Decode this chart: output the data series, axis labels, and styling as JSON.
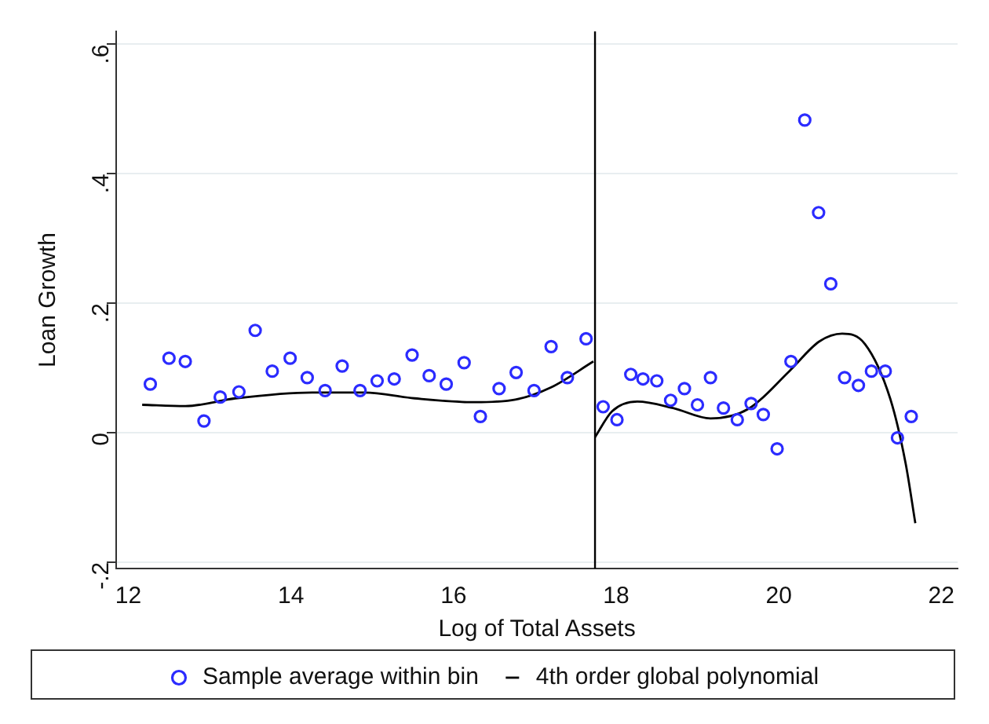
{
  "chart_data": {
    "type": "scatter",
    "xlabel": "Log of Total Assets",
    "ylabel": "Loan Growth",
    "xlim": [
      11.85,
      22.2
    ],
    "ylim": [
      -0.21,
      0.62
    ],
    "xticks": [
      12,
      14,
      16,
      18,
      20,
      22
    ],
    "yticks": [
      {
        "value": -0.2,
        "label": "-.2"
      },
      0,
      {
        "value": 0.2,
        "label": ".2"
      },
      {
        "value": 0.4,
        "label": ".4"
      },
      {
        "value": 0.6,
        "label": ".6"
      }
    ],
    "grid": "y",
    "legend": "bottom",
    "marker": "circle",
    "ref_lines": [
      {
        "axis": "x",
        "value": 17.74,
        "color": "#000000"
      }
    ],
    "series": [
      {
        "name": "Sample average within bin",
        "type": "scatter",
        "color": "#2b2bff",
        "x": [
          12.27,
          12.5,
          12.7,
          12.93,
          13.13,
          13.36,
          13.56,
          13.77,
          13.99,
          14.2,
          14.42,
          14.63,
          14.85,
          15.06,
          15.27,
          15.49,
          15.7,
          15.91,
          16.13,
          16.33,
          16.56,
          16.77,
          16.99,
          17.2,
          17.4,
          17.63,
          17.84,
          18.01,
          18.18,
          18.33,
          18.5,
          18.67,
          18.84,
          19.0,
          19.16,
          19.32,
          19.49,
          19.66,
          19.81,
          19.98,
          20.15,
          20.32,
          20.49,
          20.64,
          20.81,
          20.98,
          21.14,
          21.31,
          21.46,
          21.63
        ],
        "values": [
          0.075,
          0.115,
          0.11,
          0.018,
          0.055,
          0.063,
          0.158,
          0.095,
          0.115,
          0.085,
          0.065,
          0.103,
          0.065,
          0.08,
          0.083,
          0.12,
          0.088,
          0.075,
          0.108,
          0.025,
          0.068,
          0.093,
          0.065,
          0.133,
          0.085,
          0.145,
          0.04,
          0.02,
          0.09,
          0.083,
          0.08,
          0.05,
          0.068,
          0.043,
          0.085,
          0.038,
          0.02,
          0.045,
          0.028,
          -0.025,
          0.11,
          0.483,
          0.34,
          0.23,
          0.085,
          0.073,
          0.095,
          0.095,
          -0.008,
          0.025
        ]
      },
      {
        "name": "4th order global polynomial",
        "type": "line",
        "color": "#000000",
        "marker": "none",
        "x": [
          12.17,
          12.7,
          13.32,
          14.26,
          14.9,
          15.52,
          16.26,
          16.76,
          17.2,
          17.72,
          null,
          17.74,
          17.95,
          18.26,
          18.7,
          19.16,
          19.63,
          20.13,
          20.5,
          20.78,
          21.06,
          21.37,
          21.56,
          21.68
        ],
        "values": [
          0.043,
          0.041,
          0.053,
          0.062,
          0.062,
          0.053,
          0.047,
          0.051,
          0.07,
          0.11,
          null,
          -0.007,
          0.033,
          0.048,
          0.038,
          0.022,
          0.037,
          0.095,
          0.141,
          0.153,
          0.137,
          0.053,
          -0.047,
          -0.14
        ]
      }
    ]
  }
}
